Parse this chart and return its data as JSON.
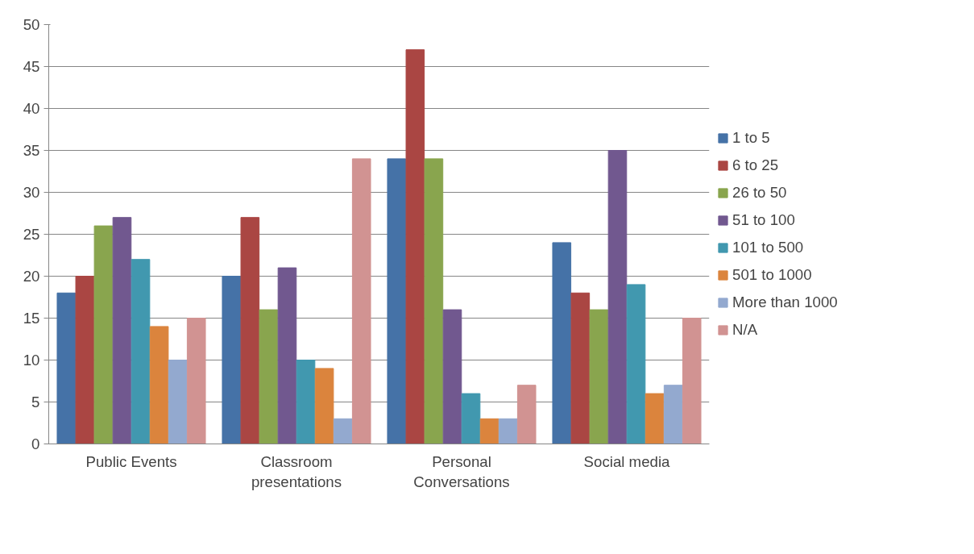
{
  "chart_data": {
    "type": "bar",
    "categories": [
      "Public Events",
      "Classroom presentations",
      "Personal Conversations",
      "Social media"
    ],
    "series": [
      {
        "name": "1 to 5",
        "color": "#4572a7",
        "values": [
          18,
          20,
          34,
          24
        ]
      },
      {
        "name": "6 to 25",
        "color": "#aa4643",
        "values": [
          20,
          27,
          47,
          18
        ]
      },
      {
        "name": "26 to 50",
        "color": "#89a54e",
        "values": [
          26,
          16,
          34,
          16
        ]
      },
      {
        "name": "51 to 100",
        "color": "#71588f",
        "values": [
          27,
          21,
          16,
          35
        ]
      },
      {
        "name": "101 to 500",
        "color": "#4198af",
        "values": [
          22,
          10,
          6,
          19
        ]
      },
      {
        "name": "501 to 1000",
        "color": "#db843d",
        "values": [
          14,
          9,
          3,
          6
        ]
      },
      {
        "name": "More than 1000",
        "color": "#93a9cf",
        "values": [
          10,
          3,
          3,
          7
        ]
      },
      {
        "name": "N/A",
        "color": "#d19392",
        "values": [
          15,
          34,
          7,
          15
        ]
      }
    ],
    "ylim": [
      0,
      50
    ],
    "yticks": [
      0,
      5,
      10,
      15,
      20,
      25,
      30,
      35,
      40,
      45,
      50
    ],
    "grid": "y",
    "legend": "right"
  }
}
